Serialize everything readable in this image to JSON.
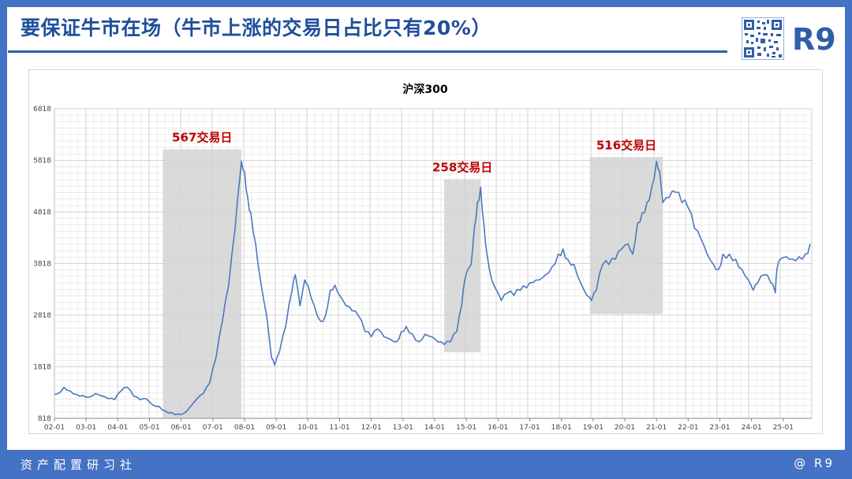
{
  "header": {
    "title": "要保证牛市在场（牛市上涨的交易日占比只有20%）",
    "brand": "R9"
  },
  "footer": {
    "left_text": "资产配置研习社",
    "right_text": "@ R9"
  },
  "colors": {
    "frame": "#4472c4",
    "title": "#1f4e9c",
    "line": "#4a78c0",
    "highlight": "#d3d3d3",
    "annotation": "#c00000"
  },
  "chart_data": {
    "type": "line",
    "title": "沪深300",
    "xlabel": "",
    "ylabel": "",
    "x_ticks": [
      "02-01",
      "03-01",
      "04-01",
      "05-01",
      "06-01",
      "07-01",
      "08-01",
      "09-01",
      "10-01",
      "11-01",
      "12-01",
      "13-01",
      "14-01",
      "15-01",
      "16-01",
      "17-01",
      "18-01",
      "19-01",
      "20-01",
      "21-01",
      "22-01",
      "23-01",
      "24-01",
      "25-01"
    ],
    "y_ticks": [
      818,
      1818,
      2818,
      3818,
      4818,
      5818,
      6818
    ],
    "ylim": [
      818,
      6818
    ],
    "xlim": [
      2002.0,
      2025.9
    ],
    "grid": true,
    "series": [
      {
        "x": [
          2002.0,
          2002.15,
          2002.3,
          2002.5,
          2002.7,
          2002.9,
          2003.1,
          2003.3,
          2003.5,
          2003.7,
          2003.9,
          2004.1,
          2004.3,
          2004.5,
          2004.7,
          2004.9,
          2005.1,
          2005.3,
          2005.5,
          2005.7,
          2005.9,
          2006.1,
          2006.3,
          2006.5,
          2006.7,
          2006.9,
          2007.1,
          2007.3,
          2007.5,
          2007.7,
          2007.8,
          2007.9,
          2008.0,
          2008.1,
          2008.2,
          2008.35,
          2008.5,
          2008.7,
          2008.85,
          2008.95,
          2009.1,
          2009.3,
          2009.5,
          2009.6,
          2009.75,
          2009.9,
          2010.0,
          2010.2,
          2010.4,
          2010.55,
          2010.7,
          2010.85,
          2011.0,
          2011.2,
          2011.4,
          2011.6,
          2011.8,
          2012.0,
          2012.2,
          2012.4,
          2012.6,
          2012.8,
          2012.95,
          2013.1,
          2013.3,
          2013.5,
          2013.7,
          2013.9,
          2014.1,
          2014.3,
          2014.5,
          2014.7,
          2014.85,
          2014.95,
          2015.05,
          2015.15,
          2015.25,
          2015.35,
          2015.45,
          2015.55,
          2015.65,
          2015.8,
          2015.95,
          2016.1,
          2016.3,
          2016.5,
          2016.7,
          2016.9,
          2017.1,
          2017.3,
          2017.5,
          2017.7,
          2017.9,
          2018.05,
          2018.2,
          2018.4,
          2018.6,
          2018.8,
          2018.95,
          2019.1,
          2019.3,
          2019.5,
          2019.7,
          2019.9,
          2020.1,
          2020.25,
          2020.4,
          2020.55,
          2020.7,
          2020.85,
          2021.0,
          2021.1,
          2021.2,
          2021.4,
          2021.6,
          2021.8,
          2022.0,
          2022.2,
          2022.4,
          2022.6,
          2022.8,
          2022.95,
          2023.1,
          2023.3,
          2023.5,
          2023.7,
          2023.9,
          2024.05,
          2024.2,
          2024.4,
          2024.6,
          2024.75,
          2024.8,
          2024.9,
          2025.1,
          2025.3,
          2025.5,
          2025.7,
          2025.85
        ],
        "y": [
          1280,
          1310,
          1420,
          1350,
          1280,
          1260,
          1230,
          1300,
          1250,
          1200,
          1180,
          1350,
          1420,
          1250,
          1180,
          1200,
          1080,
          1050,
          960,
          930,
          900,
          920,
          1050,
          1200,
          1300,
          1500,
          2000,
          2700,
          3400,
          4500,
          5200,
          5800,
          5600,
          5100,
          4800,
          4200,
          3500,
          2800,
          2000,
          1850,
          2100,
          2600,
          3300,
          3600,
          3000,
          3500,
          3400,
          3000,
          2700,
          2800,
          3300,
          3400,
          3200,
          3000,
          2900,
          2800,
          2500,
          2400,
          2550,
          2400,
          2350,
          2300,
          2500,
          2600,
          2450,
          2300,
          2450,
          2400,
          2300,
          2250,
          2300,
          2500,
          3000,
          3500,
          3700,
          3800,
          4500,
          5000,
          5300,
          4600,
          4000,
          3500,
          3300,
          3100,
          3250,
          3200,
          3300,
          3350,
          3450,
          3500,
          3600,
          3750,
          4000,
          4100,
          3900,
          3800,
          3450,
          3200,
          3100,
          3300,
          3800,
          3800,
          3900,
          4100,
          4200,
          4000,
          4600,
          4800,
          5000,
          5300,
          5800,
          5600,
          5000,
          5100,
          5200,
          5000,
          4900,
          4500,
          4300,
          4000,
          3800,
          3700,
          4000,
          4000,
          3900,
          3700,
          3500,
          3300,
          3450,
          3600,
          3450,
          3250,
          3700,
          3900,
          3950,
          3900,
          3950,
          4000,
          4200
        ]
      }
    ],
    "highlights": [
      {
        "x_start": 2005.42,
        "x_end": 2007.9,
        "y_top": 6030,
        "y_bottom": 818,
        "label": "567交易日"
      },
      {
        "x_start": 2014.3,
        "x_end": 2015.45,
        "y_top": 5450,
        "y_bottom": 2100,
        "label": "258交易日"
      },
      {
        "x_start": 2018.9,
        "x_end": 2021.2,
        "y_top": 5880,
        "y_bottom": 2840,
        "label": "516交易日"
      }
    ]
  }
}
